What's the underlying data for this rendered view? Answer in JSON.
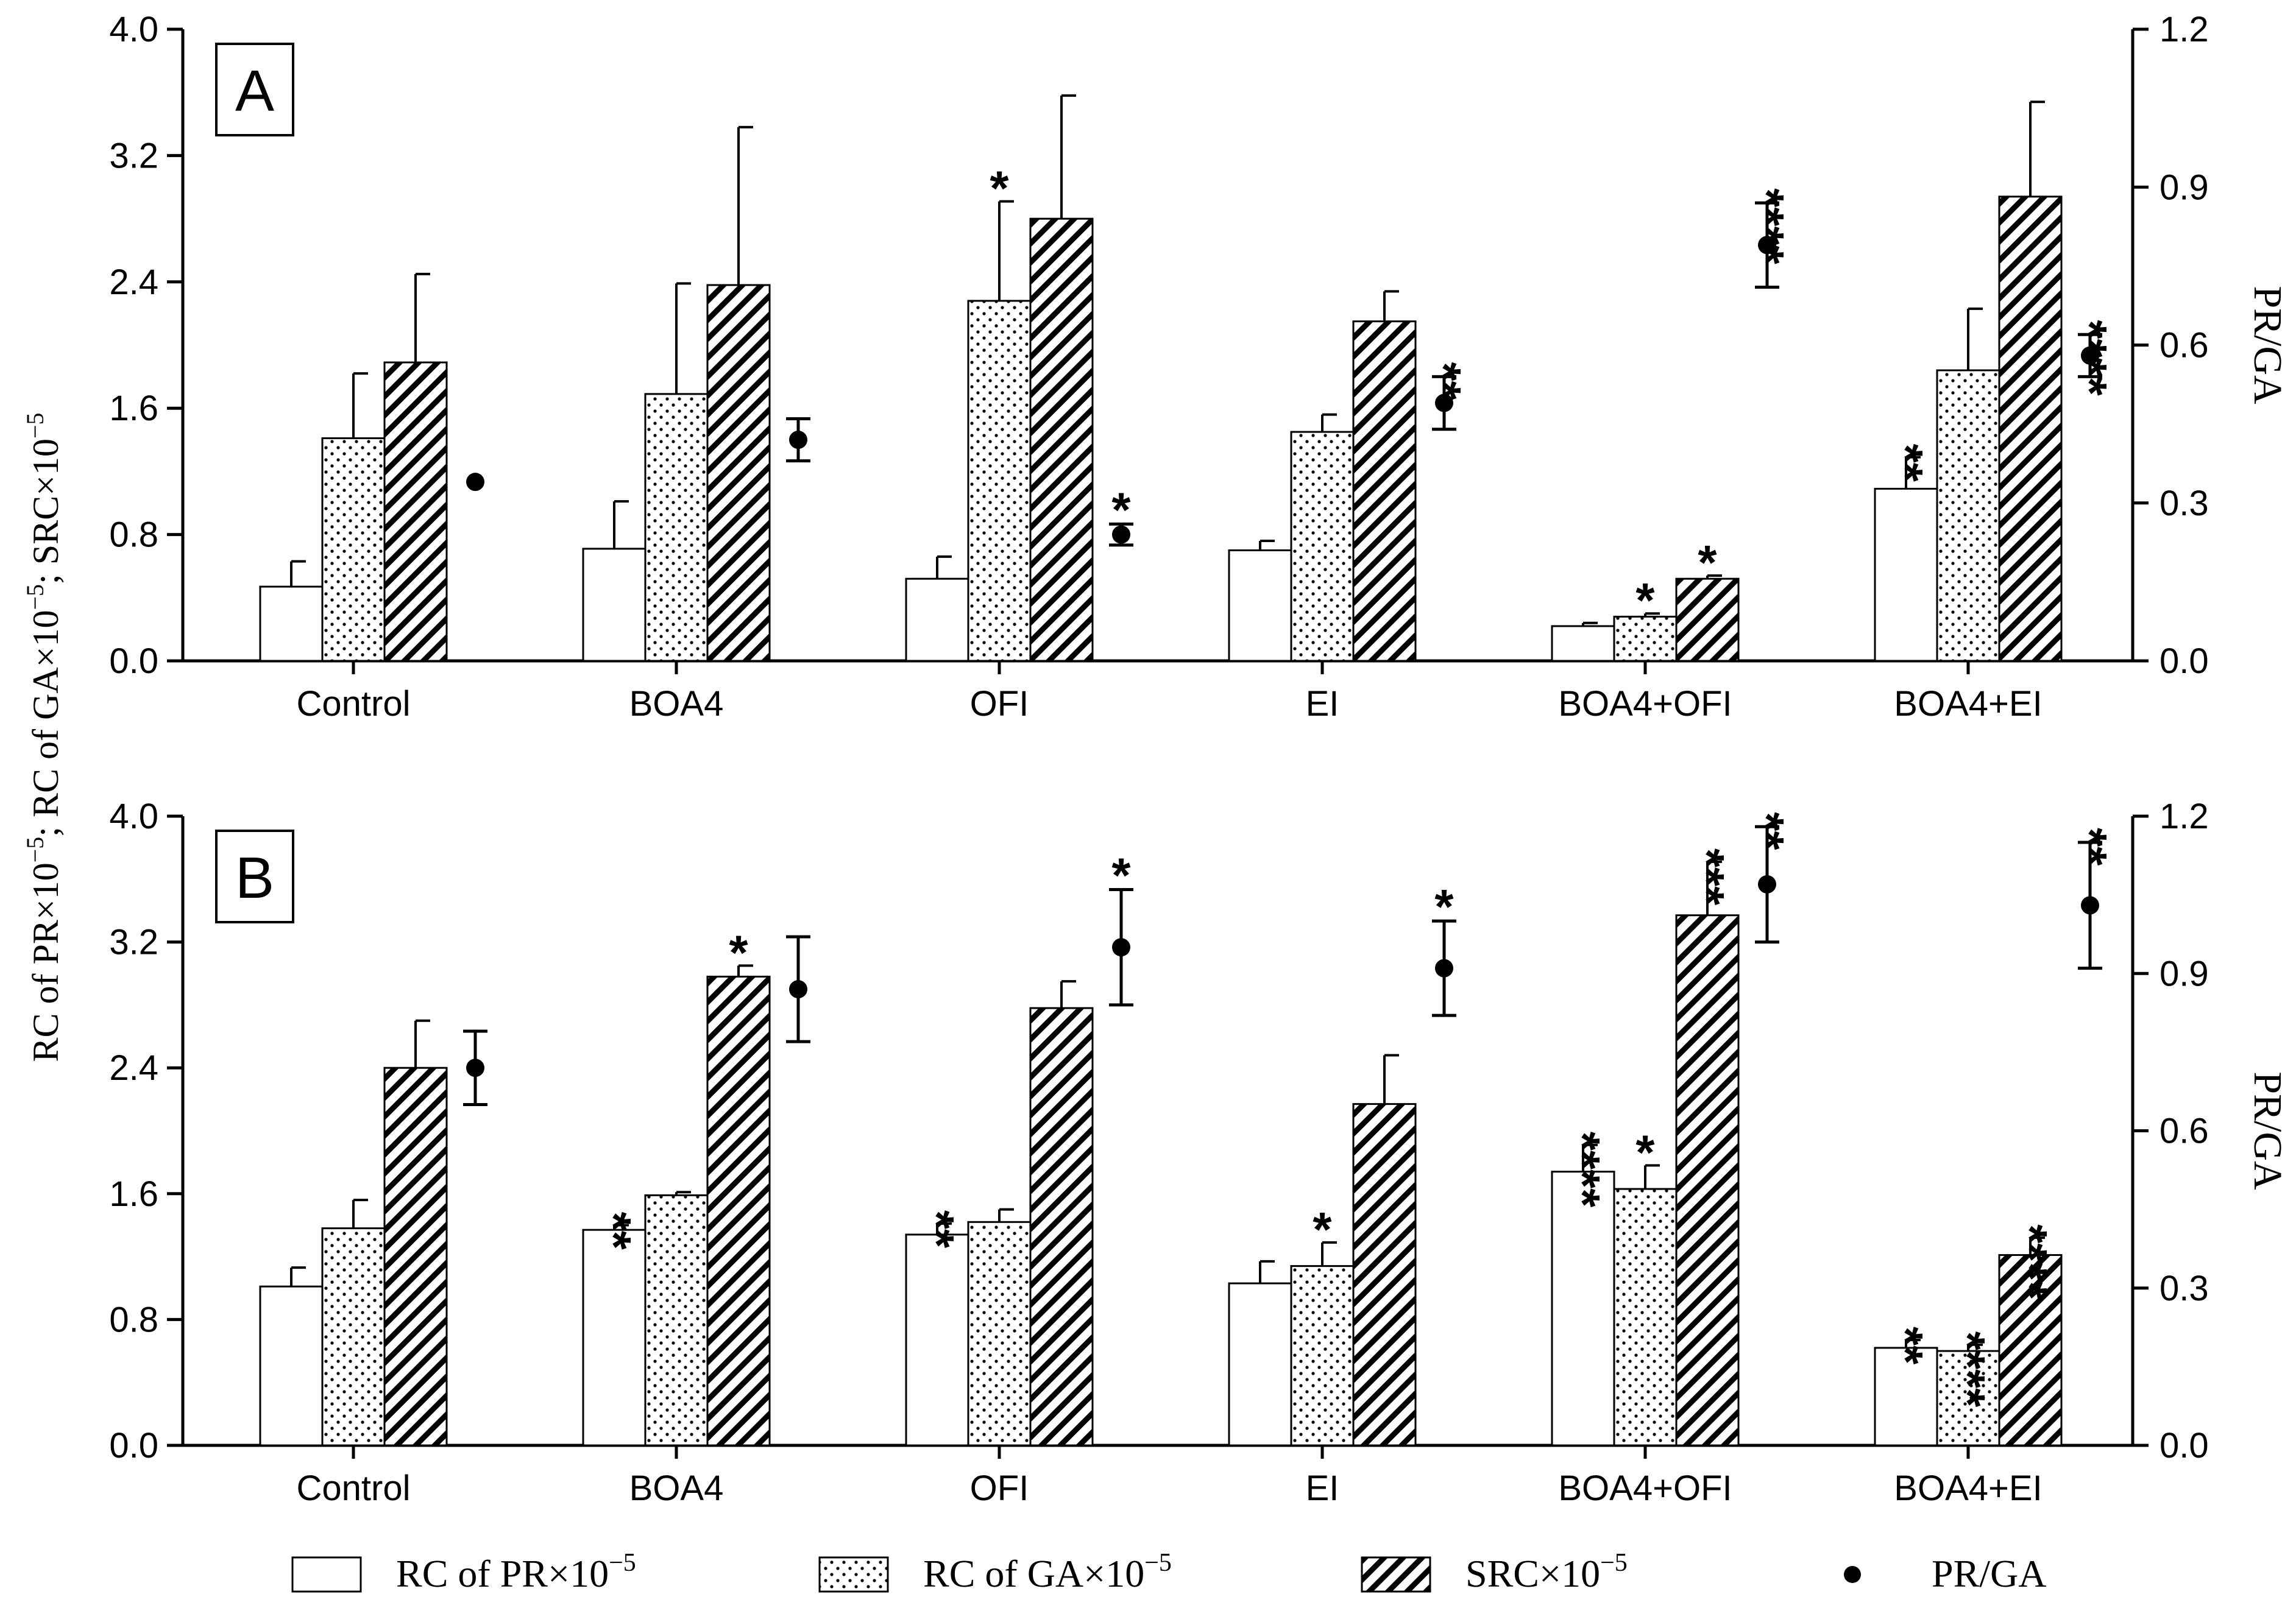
{
  "chart_data": {
    "type": "bar",
    "y_axis_left": {
      "label_parts": [
        "RC of PR×10",
        "−5",
        "; RC of GA×10",
        "−5",
        "; SRC×10",
        "−5"
      ],
      "ticks": [
        "0.0",
        "0.8",
        "1.6",
        "2.4",
        "3.2",
        "4.0"
      ],
      "ylim": [
        0,
        4.0
      ]
    },
    "y_axis_right": {
      "label": "PR/GA",
      "ticks": [
        "0.0",
        "0.3",
        "0.6",
        "0.9",
        "1.2"
      ],
      "ylim": [
        0,
        1.2
      ]
    },
    "categories": [
      "Control",
      "BOA4",
      "OFI",
      "EI",
      "BOA4+OFI",
      "BOA4+EI"
    ],
    "legend": [
      {
        "key": "pr",
        "base": "RC of PR×10",
        "exp": "−5"
      },
      {
        "key": "ga",
        "base": "RC of GA×10",
        "exp": "−5"
      },
      {
        "key": "src",
        "base": "SRC×10",
        "exp": "−5"
      },
      {
        "key": "ratio",
        "base": "PR/GA",
        "exp": ""
      }
    ],
    "panels": [
      {
        "label": "A",
        "bars": {
          "pr": {
            "values": [
              0.47,
              0.71,
              0.52,
              0.7,
              0.22,
              1.09
            ],
            "errors": [
              0.16,
              0.3,
              0.14,
              0.06,
              0.02,
              0.2
            ],
            "sig": [
              "",
              "",
              "",
              "",
              "",
              "**"
            ]
          },
          "ga": {
            "values": [
              1.41,
              1.69,
              2.28,
              1.45,
              0.28,
              1.84
            ],
            "errors": [
              0.41,
              0.7,
              0.63,
              0.11,
              0.02,
              0.39
            ],
            "sig": [
              "",
              "",
              "*",
              "",
              "*",
              ""
            ]
          },
          "src": {
            "values": [
              1.89,
              2.38,
              2.8,
              2.15,
              0.52,
              2.94
            ],
            "errors": [
              0.56,
              1.0,
              0.78,
              0.19,
              0.02,
              0.6
            ],
            "sig": [
              "",
              "",
              "",
              "",
              "*",
              ""
            ]
          }
        },
        "ratio": {
          "values": [
            0.34,
            0.42,
            0.24,
            0.49,
            0.79,
            0.58
          ],
          "errors": [
            0.0,
            0.04,
            0.02,
            0.05,
            0.08,
            0.04
          ],
          "sig": [
            "",
            "",
            "*",
            "**",
            "****",
            "****"
          ]
        }
      },
      {
        "label": "B",
        "bars": {
          "pr": {
            "values": [
              1.01,
              1.37,
              1.34,
              1.03,
              1.74,
              0.62
            ],
            "errors": [
              0.12,
              0.03,
              0.07,
              0.14,
              0.17,
              0.05
            ],
            "sig": [
              "",
              "**",
              "**",
              "",
              "****",
              "**"
            ]
          },
          "ga": {
            "values": [
              1.38,
              1.59,
              1.42,
              1.14,
              1.63,
              0.6
            ],
            "errors": [
              0.18,
              0.02,
              0.08,
              0.15,
              0.15,
              0.04
            ],
            "sig": [
              "",
              "",
              "",
              "*",
              "*",
              "****"
            ]
          },
          "src": {
            "values": [
              2.4,
              2.98,
              2.78,
              2.17,
              3.37,
              1.21
            ],
            "errors": [
              0.3,
              0.07,
              0.17,
              0.31,
              0.34,
              0.11
            ],
            "sig": [
              "",
              "*",
              "",
              "",
              "***",
              "****"
            ]
          }
        },
        "ratio": {
          "values": [
            0.72,
            0.87,
            0.95,
            0.91,
            1.07,
            1.03
          ],
          "errors": [
            0.07,
            0.1,
            0.11,
            0.09,
            0.11,
            0.12
          ],
          "sig": [
            "",
            "",
            "*",
            "*",
            "**",
            "**"
          ]
        }
      }
    ]
  }
}
